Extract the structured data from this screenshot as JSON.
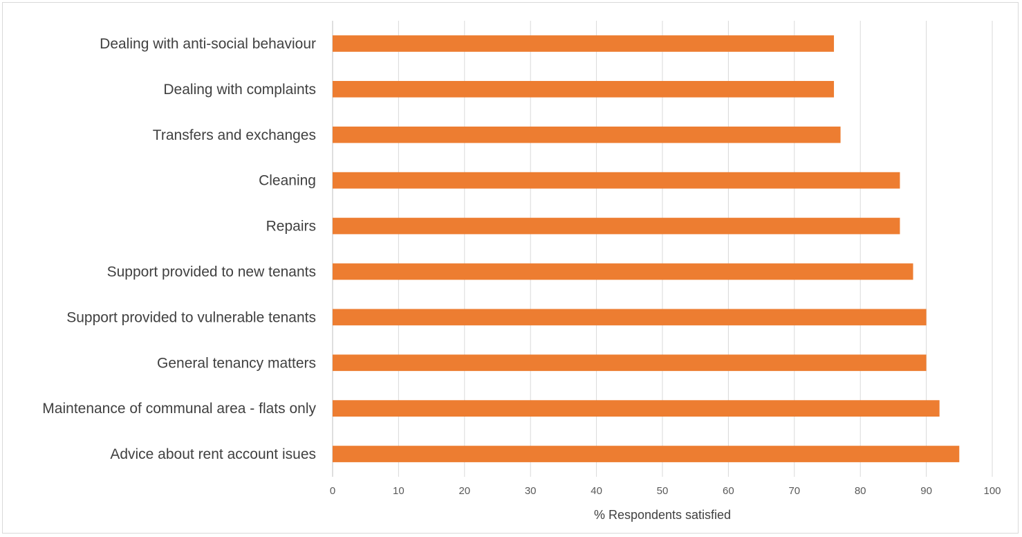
{
  "chart_data": {
    "type": "bar",
    "orientation": "horizontal",
    "categories": [
      "Dealing with anti-social behaviour",
      "Dealing with complaints",
      "Transfers and exchanges",
      "Cleaning",
      "Repairs",
      "Support provided to new tenants ",
      "Support provided to vulnerable tenants",
      "General tenancy matters",
      "Maintenance of communal area - flats only",
      "Advice about rent account isues"
    ],
    "values": [
      76,
      76,
      77,
      86,
      86,
      88,
      90,
      90,
      92,
      95
    ],
    "title": "",
    "xlabel": "% Respondents satisfied",
    "ylabel": "",
    "xlim": [
      0,
      100
    ],
    "xticks": [
      0,
      10,
      20,
      30,
      40,
      50,
      60,
      70,
      80,
      90,
      100
    ],
    "grid": "vertical",
    "legend": "none",
    "colors": {
      "bar": "#ED7D31",
      "grid": "#d9d9d9",
      "axis": "#bfbfbf"
    }
  }
}
